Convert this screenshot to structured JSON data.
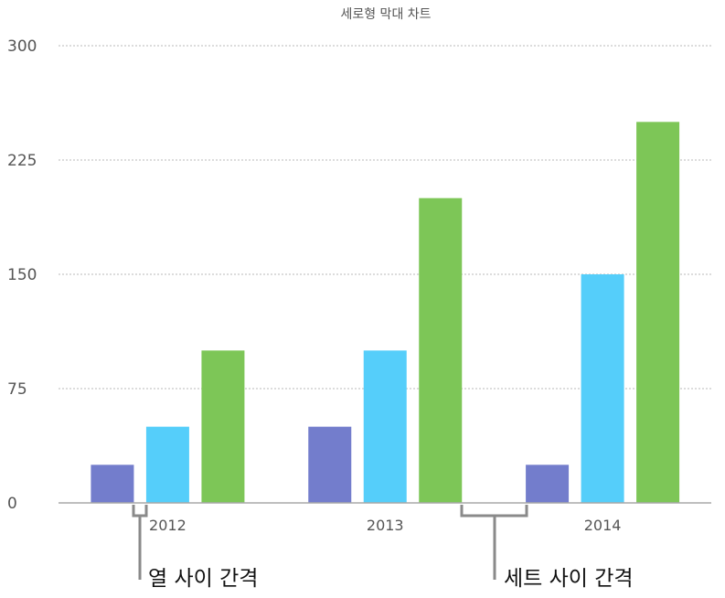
{
  "chart_data": {
    "type": "bar",
    "title": "세로형 막대 차트",
    "xlabel": "",
    "ylabel": "",
    "categories": [
      "2012",
      "2013",
      "2014"
    ],
    "ylim": [
      0,
      300
    ],
    "yticks": [
      0,
      75,
      150,
      225,
      300
    ],
    "grid": true,
    "legend": "none",
    "series": [
      {
        "values": [
          25,
          50,
          25
        ],
        "color": "#737dcc"
      },
      {
        "values": [
          50,
          100,
          150
        ],
        "color": "#55cefa"
      },
      {
        "values": [
          100,
          200,
          250
        ],
        "color": "#7dc657"
      }
    ],
    "annotations": {
      "column_gap": "열 사이 간격",
      "set_gap": "세트 사이 간격"
    }
  }
}
